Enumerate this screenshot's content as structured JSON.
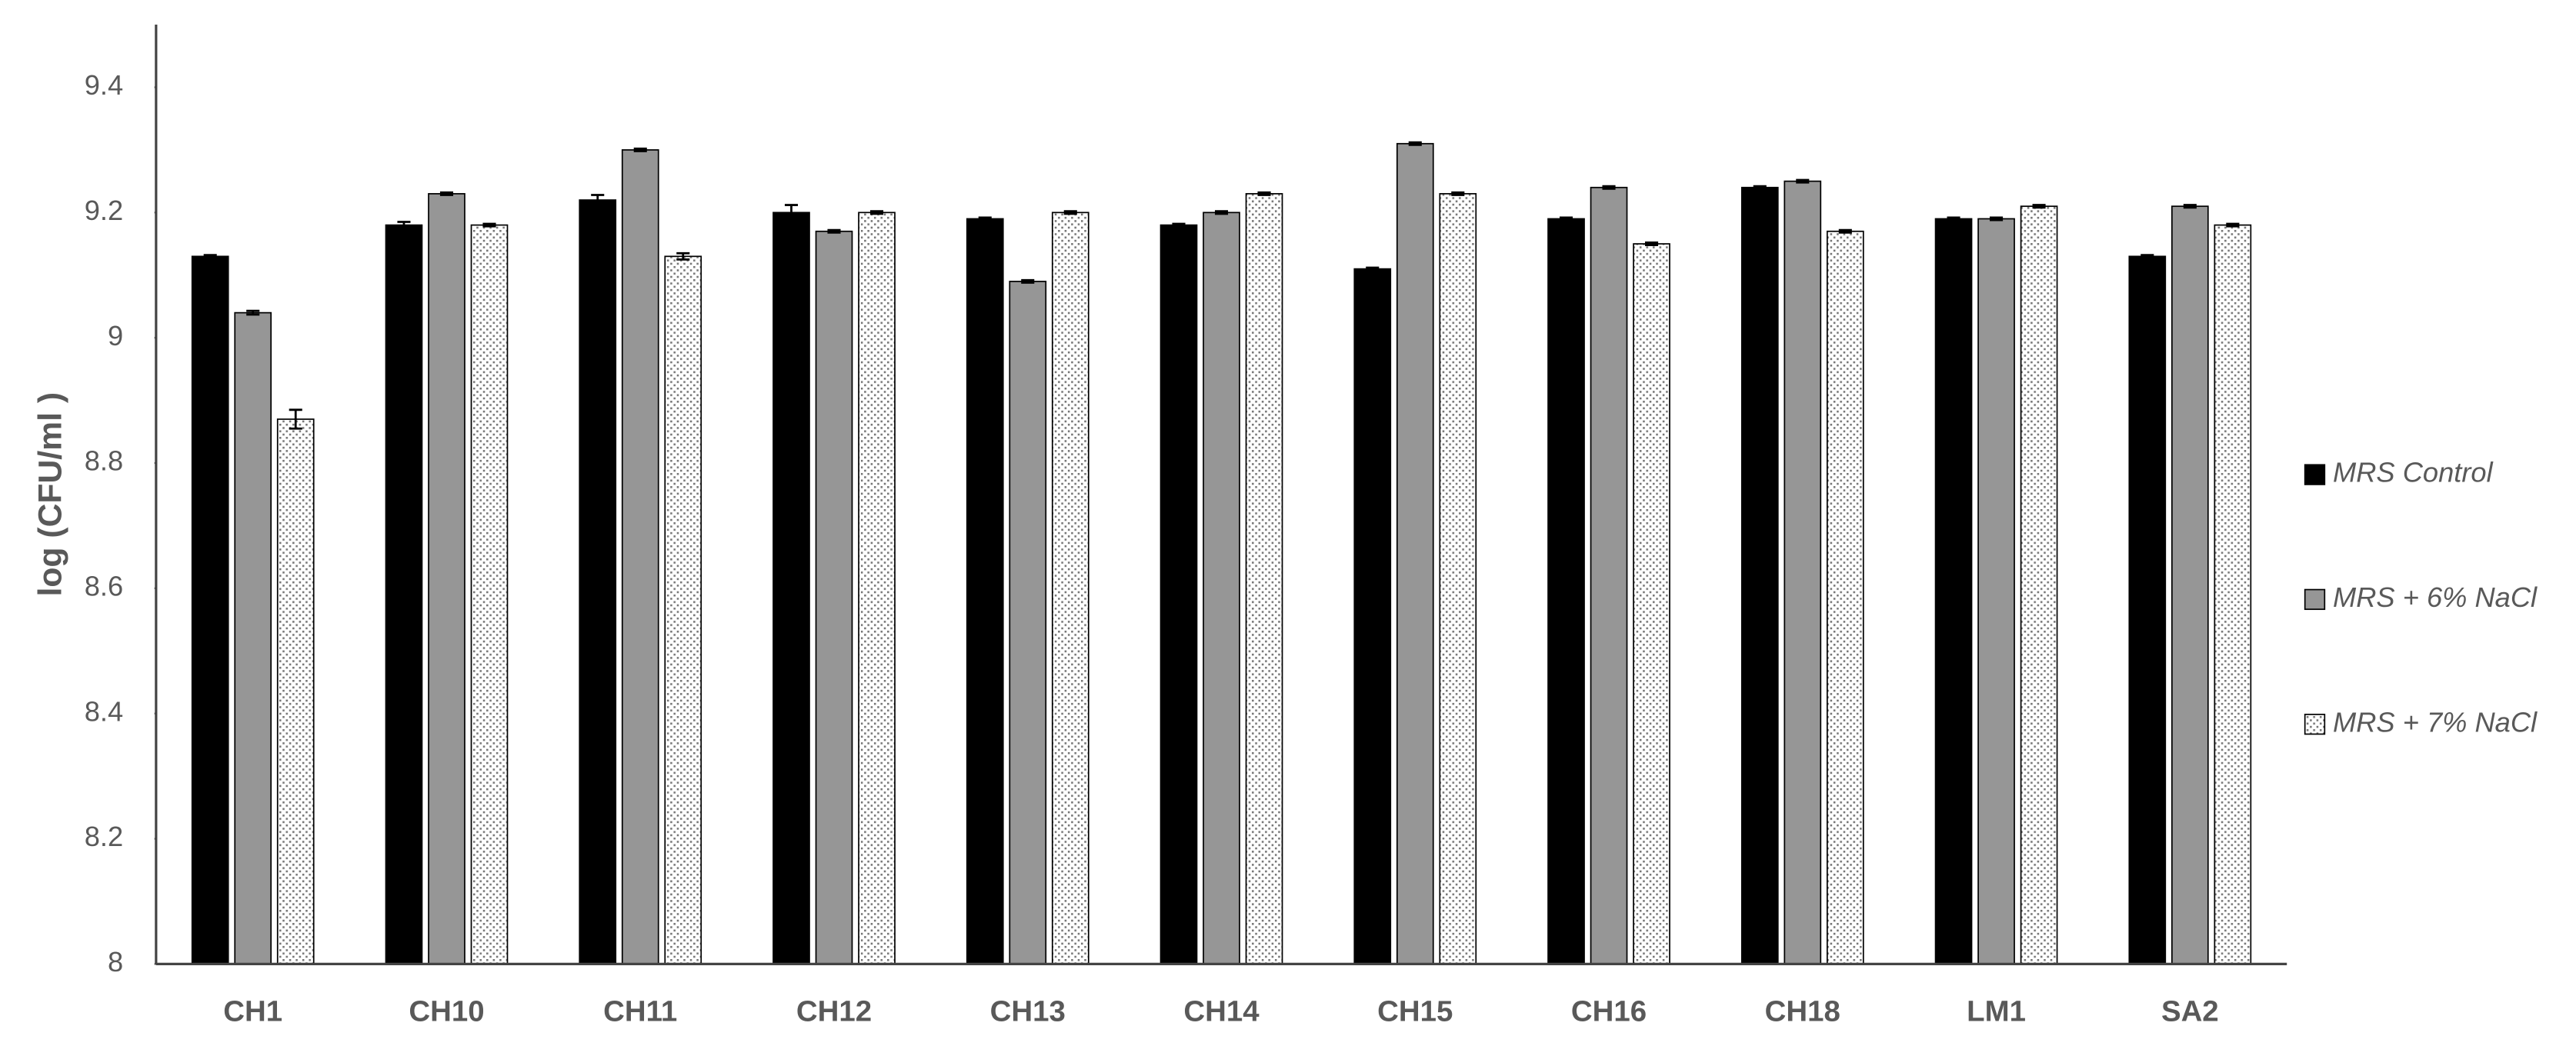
{
  "chart_data": {
    "type": "bar",
    "y_label": "log (CFU/ml )",
    "categories": [
      "CH1",
      "CH10",
      "CH11",
      "CH12",
      "CH13",
      "CH14",
      "CH15",
      "CH16",
      "CH18",
      "LM1",
      "SA2"
    ],
    "series": [
      {
        "name": "MRS Control",
        "color": "#000000",
        "pattern": "solid",
        "values": [
          9.13,
          9.18,
          9.22,
          9.2,
          9.19,
          9.18,
          9.11,
          9.19,
          9.24,
          9.19,
          9.13
        ],
        "errors": [
          0.002,
          0.005,
          0.008,
          0.012,
          0.002,
          0.002,
          0.002,
          0.002,
          0.002,
          0.002,
          0.002
        ]
      },
      {
        "name": "MRS + 6% NaCl",
        "color": "#969696",
        "pattern": "solid",
        "values": [
          9.04,
          9.23,
          9.3,
          9.17,
          9.09,
          9.2,
          9.31,
          9.24,
          9.25,
          9.19,
          9.21
        ],
        "errors": [
          0.003,
          0.002,
          0.002,
          0.002,
          0.002,
          0.002,
          0.002,
          0.002,
          0.002,
          0.002,
          0.002
        ]
      },
      {
        "name": "MRS + 7% NaCl",
        "color": "#ffffff",
        "pattern": "dots",
        "values": [
          8.87,
          9.18,
          9.13,
          9.2,
          9.2,
          9.23,
          9.23,
          9.15,
          9.17,
          9.21,
          9.18
        ],
        "errors": [
          0.015,
          0.002,
          0.005,
          0.002,
          0.002,
          0.002,
          0.002,
          0.002,
          0.002,
          0.002,
          0.002
        ]
      }
    ],
    "ylim": [
      8,
      9.5
    ],
    "yticks": [
      8,
      8.2,
      8.4,
      8.6,
      8.8,
      9,
      9.2,
      9.4
    ],
    "grid": false,
    "legend": "right"
  }
}
